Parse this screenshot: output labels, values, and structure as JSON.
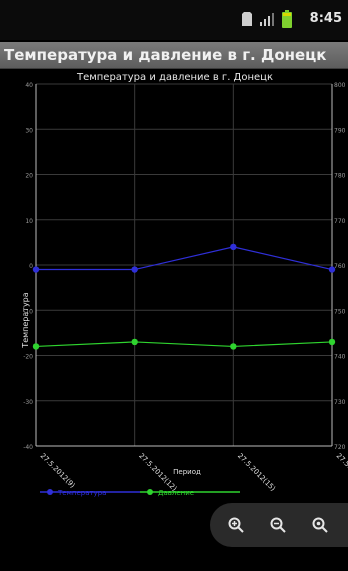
{
  "status_bar": {
    "time": "8:45"
  },
  "app": {
    "title": "Температура и давление в г. Донецк"
  },
  "chart_data": {
    "type": "line",
    "title": "Температура и давление в г. Донецк",
    "xlabel": "Период",
    "ylabel_left": "Температура",
    "categories": [
      "27.5.2012(9)",
      "27.5.2012(12)",
      "27.5.2012(15)",
      "27.5.2012(18)"
    ],
    "left_axis": {
      "ylim": [
        -40,
        40
      ],
      "ticks": [
        "40",
        "30",
        "20",
        "10",
        "0",
        "-10",
        "-20",
        "-30",
        "-40"
      ]
    },
    "right_axis": {
      "ylim": [
        720,
        800
      ],
      "ticks": [
        "800",
        "790",
        "780",
        "770",
        "760",
        "750",
        "740",
        "730",
        "720"
      ]
    },
    "series": [
      {
        "name": "Температура",
        "axis": "left",
        "color": "#2f2fd8",
        "values": [
          -1,
          -1,
          4,
          -1
        ]
      },
      {
        "name": "Давление",
        "axis": "right",
        "color": "#2fd42f",
        "values": [
          742,
          743,
          742,
          743
        ]
      }
    ],
    "legend_placement": "bottom",
    "grid": true
  },
  "zoom_controls": {
    "icons": [
      "zoom-in-icon",
      "zoom-out-icon",
      "zoom-reset-icon"
    ]
  },
  "colors": {
    "background": "#000000",
    "grid": "#3a3a3a",
    "axis": "#bdbdbd"
  }
}
